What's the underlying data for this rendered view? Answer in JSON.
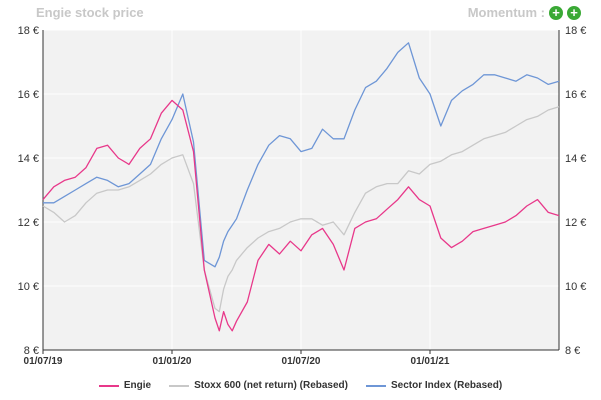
{
  "header": {
    "title": "Engie stock price",
    "momentum_label": "Momentum :"
  },
  "icons": {
    "momentum": "plus-circle-icon"
  },
  "chart_data": {
    "type": "line",
    "title": "Engie stock price",
    "x_ticks": [
      "01/07/19",
      "01/01/20",
      "01/07/20",
      "01/01/21"
    ],
    "y_ticks": [
      "8 €",
      "10 €",
      "12 €",
      "14 €",
      "16 €",
      "18 €"
    ],
    "ylim": [
      8,
      18
    ],
    "xlim": [
      0,
      24
    ],
    "grid": true,
    "legend_position": "bottom",
    "series": [
      {
        "name": "Engie",
        "color": "#e8388a",
        "x": [
          0,
          0.5,
          1,
          1.5,
          2,
          2.5,
          3,
          3.5,
          4,
          4.5,
          5,
          5.5,
          6,
          6.5,
          7,
          7.5,
          8,
          8.2,
          8.4,
          8.6,
          8.8,
          9,
          9.5,
          10,
          10.5,
          11,
          11.5,
          12,
          12.5,
          13,
          13.5,
          14,
          14.5,
          15,
          15.5,
          16,
          16.5,
          17,
          17.5,
          18,
          18.5,
          19,
          19.5,
          20,
          20.5,
          21,
          21.5,
          22,
          22.5,
          23,
          23.5,
          24
        ],
        "values": [
          12.7,
          13.1,
          13.3,
          13.4,
          13.7,
          14.3,
          14.4,
          14.0,
          13.8,
          14.3,
          14.6,
          15.4,
          15.8,
          15.5,
          14.2,
          10.5,
          9.0,
          8.6,
          9.2,
          8.8,
          8.6,
          8.9,
          9.5,
          10.8,
          11.3,
          11.0,
          11.4,
          11.1,
          11.6,
          11.8,
          11.3,
          10.5,
          11.8,
          12.0,
          12.1,
          12.4,
          12.7,
          13.1,
          12.7,
          12.5,
          11.5,
          11.2,
          11.4,
          11.7,
          11.8,
          11.9,
          12.0,
          12.2,
          12.5,
          12.7,
          12.3,
          12.2
        ]
      },
      {
        "name": "Stoxx 600 (net return) (Rebased)",
        "color": "#c8c8c8",
        "x": [
          0,
          0.5,
          1,
          1.5,
          2,
          2.5,
          3,
          3.5,
          4,
          4.5,
          5,
          5.5,
          6,
          6.5,
          7,
          7.5,
          8,
          8.2,
          8.4,
          8.6,
          8.8,
          9,
          9.5,
          10,
          10.5,
          11,
          11.5,
          12,
          12.5,
          13,
          13.5,
          14,
          14.5,
          15,
          15.5,
          16,
          16.5,
          17,
          17.5,
          18,
          18.5,
          19,
          19.5,
          20,
          20.5,
          21,
          21.5,
          22,
          22.5,
          23,
          23.5,
          24
        ],
        "values": [
          12.5,
          12.3,
          12.0,
          12.2,
          12.6,
          12.9,
          13.0,
          13.0,
          13.1,
          13.3,
          13.5,
          13.8,
          14.0,
          14.1,
          13.2,
          10.5,
          9.3,
          9.2,
          9.9,
          10.3,
          10.5,
          10.8,
          11.2,
          11.5,
          11.7,
          11.8,
          12.0,
          12.1,
          12.1,
          11.9,
          12.0,
          11.6,
          12.3,
          12.9,
          13.1,
          13.2,
          13.2,
          13.6,
          13.5,
          13.8,
          13.9,
          14.1,
          14.2,
          14.4,
          14.6,
          14.7,
          14.8,
          15.0,
          15.2,
          15.3,
          15.5,
          15.6
        ]
      },
      {
        "name": "Sector Index (Rebased)",
        "color": "#6e96d6",
        "x": [
          0,
          0.5,
          1,
          1.5,
          2,
          2.5,
          3,
          3.5,
          4,
          4.5,
          5,
          5.5,
          6,
          6.5,
          7,
          7.5,
          8,
          8.2,
          8.4,
          8.6,
          8.8,
          9,
          9.5,
          10,
          10.5,
          11,
          11.5,
          12,
          12.5,
          13,
          13.5,
          14,
          14.5,
          15,
          15.5,
          16,
          16.5,
          17,
          17.5,
          18,
          18.5,
          19,
          19.5,
          20,
          20.5,
          21,
          21.5,
          22,
          22.5,
          23,
          23.5,
          24
        ],
        "values": [
          12.6,
          12.6,
          12.8,
          13.0,
          13.2,
          13.4,
          13.3,
          13.1,
          13.2,
          13.5,
          13.8,
          14.6,
          15.2,
          16.0,
          14.5,
          10.8,
          10.6,
          10.9,
          11.4,
          11.7,
          11.9,
          12.1,
          13.0,
          13.8,
          14.4,
          14.7,
          14.6,
          14.2,
          14.3,
          14.9,
          14.6,
          14.6,
          15.5,
          16.2,
          16.4,
          16.8,
          17.3,
          17.6,
          16.5,
          16.0,
          15.0,
          15.8,
          16.1,
          16.3,
          16.6,
          16.6,
          16.5,
          16.4,
          16.6,
          16.5,
          16.3,
          16.4
        ]
      }
    ]
  }
}
